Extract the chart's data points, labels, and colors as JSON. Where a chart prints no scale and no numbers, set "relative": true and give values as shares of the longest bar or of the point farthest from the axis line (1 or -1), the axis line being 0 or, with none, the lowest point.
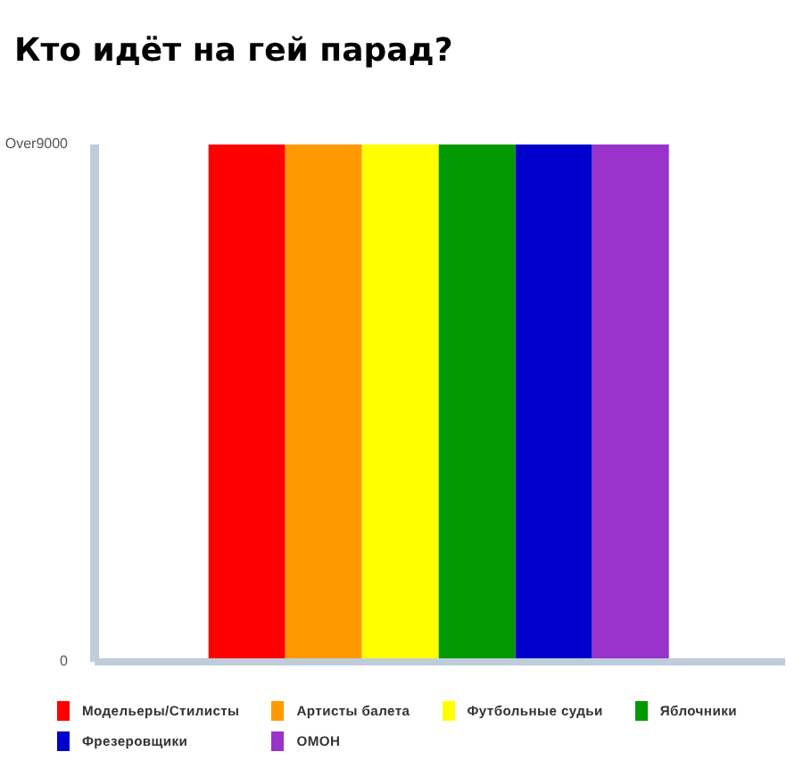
{
  "chart_data": {
    "type": "bar",
    "title": "Кто идёт на гей парад?",
    "categories": [
      null
    ],
    "series": [
      {
        "name": "Модельеры/Стилисты",
        "color": "#ff0000",
        "values": [
          1
        ]
      },
      {
        "name": "Артисты балета",
        "color": "#ff9900",
        "values": [
          1
        ]
      },
      {
        "name": "Футбольные судьи",
        "color": "#ffff00",
        "values": [
          1
        ]
      },
      {
        "name": "Яблочники",
        "color": "#009900",
        "values": [
          1
        ]
      },
      {
        "name": "Фрезеровщики",
        "color": "#0000cc",
        "values": [
          1
        ]
      },
      {
        "name": "ОМОН",
        "color": "#9933cc",
        "values": [
          1
        ]
      }
    ],
    "relative": true,
    "annotations": [
      "0",
      "Over9000"
    ],
    "legend": "bottom"
  }
}
